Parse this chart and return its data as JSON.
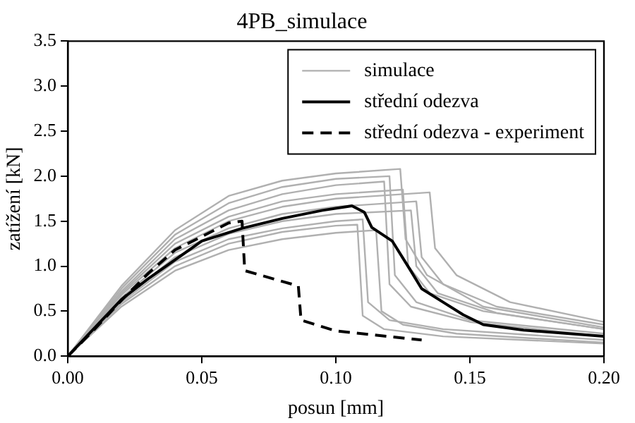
{
  "chart_data": {
    "type": "line",
    "title": "4PB_simulace",
    "xlabel": "posun [mm]",
    "ylabel": "zatížení [kN]",
    "xlim": [
      0,
      0.2
    ],
    "xticks": [
      {
        "value": 0,
        "label": "0.00"
      },
      {
        "value": 0.05,
        "label": "0.05"
      },
      {
        "value": 0.1,
        "label": "0.10"
      },
      {
        "value": 0.15,
        "label": "0.15"
      },
      {
        "value": 0.2,
        "label": "0.20"
      }
    ],
    "ylim": [
      0,
      3.5
    ],
    "yticks": [
      {
        "value": 0,
        "label": "0.0"
      },
      {
        "value": 0.5,
        "label": "0.5"
      },
      {
        "value": 1,
        "label": "1.0"
      },
      {
        "value": 1.5,
        "label": "1.5"
      },
      {
        "value": 2,
        "label": "2.0"
      },
      {
        "value": 2.5,
        "label": "2.5"
      },
      {
        "value": 3,
        "label": "3.0"
      },
      {
        "value": 3.5,
        "label": "3.5"
      }
    ],
    "grid": false,
    "legend": "top right",
    "marker": "none",
    "series": [
      {
        "name": "simulace",
        "color": "#b0b0b0",
        "x": [
          0,
          0.02,
          0.04,
          0.06,
          0.08,
          0.1,
          0.12,
          0.122,
          0.13,
          0.15,
          0.2
        ],
        "values": [
          0,
          0.75,
          1.35,
          1.7,
          1.88,
          1.97,
          2.0,
          0.9,
          0.6,
          0.4,
          0.25
        ]
      },
      {
        "color": "#b0b0b0",
        "x": [
          0,
          0.02,
          0.04,
          0.06,
          0.08,
          0.1,
          0.11,
          0.112,
          0.12,
          0.14,
          0.2
        ],
        "values": [
          0,
          0.6,
          1.05,
          1.3,
          1.42,
          1.5,
          1.52,
          0.6,
          0.4,
          0.3,
          0.18
        ]
      },
      {
        "color": "#b0b0b0",
        "x": [
          0,
          0.02,
          0.04,
          0.06,
          0.08,
          0.1,
          0.125,
          0.127,
          0.135,
          0.155,
          0.2
        ],
        "values": [
          0,
          0.7,
          1.25,
          1.55,
          1.72,
          1.8,
          1.85,
          1.0,
          0.7,
          0.5,
          0.3
        ]
      },
      {
        "color": "#b0b0b0",
        "x": [
          0,
          0.02,
          0.04,
          0.06,
          0.08,
          0.1,
          0.13,
          0.132,
          0.14,
          0.16,
          0.2
        ],
        "values": [
          0,
          0.65,
          1.15,
          1.42,
          1.58,
          1.66,
          1.72,
          1.1,
          0.8,
          0.55,
          0.35
        ]
      },
      {
        "color": "#b0b0b0",
        "x": [
          0,
          0.02,
          0.04,
          0.06,
          0.08,
          0.1,
          0.115,
          0.117,
          0.125,
          0.145,
          0.2
        ],
        "values": [
          0,
          0.55,
          0.95,
          1.18,
          1.3,
          1.37,
          1.4,
          0.5,
          0.35,
          0.25,
          0.15
        ]
      },
      {
        "color": "#b0b0b0",
        "x": [
          0,
          0.02,
          0.04,
          0.06,
          0.08,
          0.1,
          0.118,
          0.12,
          0.128,
          0.15,
          0.2
        ],
        "values": [
          0,
          0.72,
          1.3,
          1.62,
          1.8,
          1.9,
          1.94,
          0.8,
          0.55,
          0.38,
          0.22
        ]
      },
      {
        "color": "#b0b0b0",
        "x": [
          0,
          0.02,
          0.04,
          0.06,
          0.08,
          0.1,
          0.135,
          0.137,
          0.145,
          0.165,
          0.2
        ],
        "values": [
          0,
          0.68,
          1.2,
          1.5,
          1.66,
          1.75,
          1.82,
          1.2,
          0.9,
          0.6,
          0.38
        ]
      },
      {
        "color": "#b0b0b0",
        "x": [
          0,
          0.02,
          0.04,
          0.06,
          0.08,
          0.1,
          0.108,
          0.11,
          0.118,
          0.14,
          0.2
        ],
        "values": [
          0,
          0.58,
          1.0,
          1.25,
          1.38,
          1.45,
          1.46,
          0.45,
          0.3,
          0.22,
          0.14
        ]
      },
      {
        "color": "#b0b0b0",
        "x": [
          0,
          0.02,
          0.04,
          0.06,
          0.08,
          0.1,
          0.128,
          0.13,
          0.138,
          0.16,
          0.2
        ],
        "values": [
          0,
          0.62,
          1.1,
          1.36,
          1.5,
          1.58,
          1.62,
          1.0,
          0.7,
          0.48,
          0.3
        ]
      },
      {
        "color": "#b0b0b0",
        "x": [
          0,
          0.02,
          0.04,
          0.06,
          0.08,
          0.1,
          0.124,
          0.126,
          0.134,
          0.155,
          0.2
        ],
        "values": [
          0,
          0.78,
          1.4,
          1.78,
          1.95,
          2.03,
          2.08,
          1.3,
          0.9,
          0.55,
          0.32
        ]
      },
      {
        "name": "střední odezva",
        "color": "#000000",
        "x": [
          0,
          0.02,
          0.03,
          0.05,
          0.065,
          0.08,
          0.095,
          0.106,
          0.1106,
          0.1134,
          0.121,
          0.1275,
          0.132,
          0.14,
          0.1475,
          0.155,
          0.17,
          0.2
        ],
        "values": [
          0,
          0.63,
          0.86,
          1.28,
          1.42,
          1.53,
          1.62,
          1.67,
          1.6,
          1.43,
          1.28,
          0.97,
          0.75,
          0.6,
          0.46,
          0.35,
          0.29,
          0.22
        ]
      },
      {
        "name": "střední odezva - experiment",
        "color": "#000000",
        "line_style": "dashed",
        "x": [
          0,
          0.01,
          0.02,
          0.03,
          0.04,
          0.05,
          0.06,
          0.065,
          0.066,
          0.086,
          0.087,
          0.1,
          0.132
        ],
        "values": [
          0,
          0.3,
          0.62,
          0.92,
          1.18,
          1.33,
          1.48,
          1.5,
          0.95,
          0.78,
          0.4,
          0.28,
          0.18
        ]
      }
    ]
  }
}
